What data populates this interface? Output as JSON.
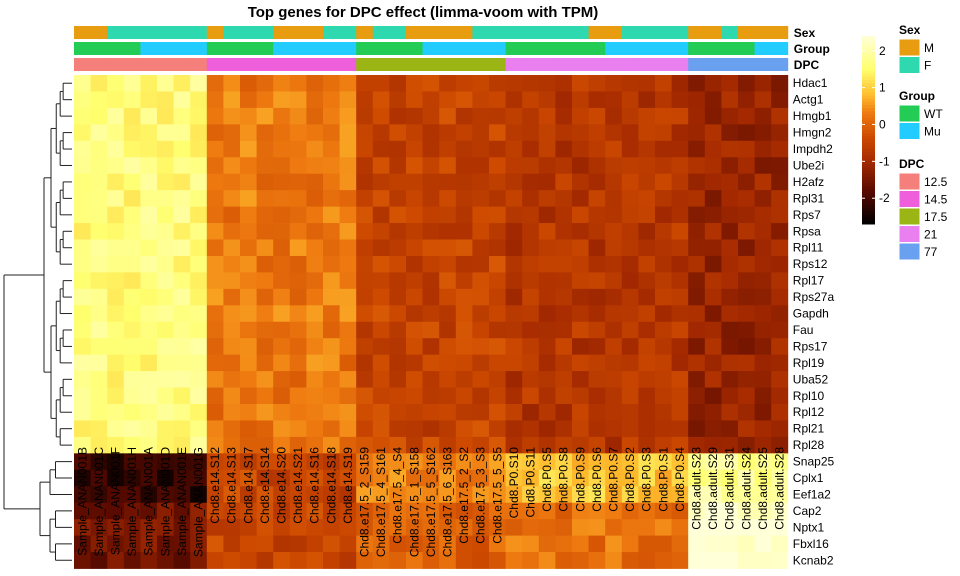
{
  "chart_data": {
    "type": "heatmap",
    "title": "Top genes for DPC effect (limma-voom with TPM)",
    "rows": [
      "Hdac1",
      "Actg1",
      "Hmgb1",
      "Hmgn2",
      "Impdh2",
      "Ube2i",
      "H2afz",
      "Rpl31",
      "Rps7",
      "Rpsa",
      "Rpl11",
      "Rps12",
      "Rpl17",
      "Rps27a",
      "Gapdh",
      "Fau",
      "Rps17",
      "Rpl19",
      "Uba52",
      "Rpl10",
      "Rpl12",
      "Rpl21",
      "Rpl28",
      "Snap25",
      "Cplx1",
      "Eef1a2",
      "Cap2",
      "Nptx1",
      "Fbxl16",
      "Kcnab2"
    ],
    "columns": [
      "Sample_ANAN001B",
      "Sample_ANAN001C",
      "Sample_ANAN001F",
      "Sample_ANAN001H",
      "Sample_ANAN001A",
      "Sample_ANAN001D",
      "Sample_ANAN001E",
      "Sample_ANAN001G",
      "Chd8.e14.S12",
      "Chd8.e14.S13",
      "Chd8.e14.S17",
      "Chd8.e14.S14",
      "Chd8.e14.S20",
      "Chd8.e14.S21",
      "Chd8.e14.S16",
      "Chd8.e14.S18",
      "Chd8.e14.S19",
      "Chd8.e17.5_2_S159",
      "Chd8.e17.5_4_S161",
      "Chd8.e17.5_4_S4",
      "Chd8.e17.5_1_S158",
      "Chd8.e17.5_5_S162",
      "Chd8.e17.5_6_S163",
      "Chd8.e17.5_2_S2",
      "Chd8.e17.5_3_S3",
      "Chd8.e17.5_5_S5",
      "Chd8.P0.S10",
      "Chd8.P0.S11",
      "Chd8.P0.S5",
      "Chd8.P0.S8",
      "Chd8.P0.S9",
      "Chd8.P0.S6",
      "Chd8.P0.S7",
      "Chd8.P0.S2",
      "Chd8.P0.S3",
      "Chd8.P0.S1",
      "Chd8.P0.S4",
      "Chd8.adult.S23",
      "Chd8.adult.S29",
      "Chd8.adult.S31",
      "Chd8.adult.S24",
      "Chd8.adult.S25",
      "Chd8.adult.S28"
    ],
    "color_scale": {
      "colors": [
        "#000000",
        "#5a0a00",
        "#a52a00",
        "#cd4a00",
        "#ee7a10",
        "#ffbd2e",
        "#ffff6e",
        "#ffffd8"
      ],
      "stops": [
        -2.7,
        -1.8,
        -1.0,
        -0.35,
        0.3,
        0.8,
        1.5,
        2.4
      ],
      "ticks": [
        2,
        1,
        0,
        -1,
        -2
      ],
      "range": [
        -2.7,
        2.4
      ]
    },
    "annotations": [
      {
        "name": "Sex",
        "values": [
          "M",
          "M",
          "F",
          "F",
          "F",
          "F",
          "F",
          "F",
          "M",
          "F",
          "F",
          "F",
          "M",
          "M",
          "M",
          "F",
          "F",
          "M",
          "F",
          "F",
          "M",
          "M",
          "M",
          "M",
          "F",
          "F",
          "F",
          "F",
          "F",
          "F",
          "F",
          "M",
          "M",
          "F",
          "F",
          "F",
          "F",
          "M",
          "M",
          "F",
          "M",
          "M",
          "M"
        ],
        "legend": [
          {
            "label": "M",
            "color": "#e89c10"
          },
          {
            "label": "F",
            "color": "#2ed9b0"
          }
        ]
      },
      {
        "name": "Group",
        "values": [
          "WT",
          "WT",
          "WT",
          "WT",
          "Mu",
          "Mu",
          "Mu",
          "Mu",
          "WT",
          "WT",
          "WT",
          "WT",
          "Mu",
          "Mu",
          "Mu",
          "Mu",
          "Mu",
          "WT",
          "WT",
          "WT",
          "WT",
          "Mu",
          "Mu",
          "Mu",
          "Mu",
          "Mu",
          "WT",
          "WT",
          "WT",
          "WT",
          "WT",
          "WT",
          "Mu",
          "Mu",
          "Mu",
          "Mu",
          "Mu",
          "WT",
          "WT",
          "WT",
          "WT",
          "Mu",
          "Mu"
        ],
        "legend": [
          {
            "label": "WT",
            "color": "#22cc55"
          },
          {
            "label": "Mu",
            "color": "#22ccff"
          }
        ]
      },
      {
        "name": "DPC",
        "values": [
          "12.5",
          "12.5",
          "12.5",
          "12.5",
          "12.5",
          "12.5",
          "12.5",
          "12.5",
          "14.5",
          "14.5",
          "14.5",
          "14.5",
          "14.5",
          "14.5",
          "14.5",
          "14.5",
          "14.5",
          "17.5",
          "17.5",
          "17.5",
          "17.5",
          "17.5",
          "17.5",
          "17.5",
          "17.5",
          "17.5",
          "21",
          "21",
          "21",
          "21",
          "21",
          "21",
          "21",
          "21",
          "21",
          "21",
          "21",
          "77",
          "77",
          "77",
          "77",
          "77",
          "77"
        ],
        "legend": [
          {
            "label": "12.5",
            "color": "#f57f7a"
          },
          {
            "label": "14.5",
            "color": "#ef5fdc"
          },
          {
            "label": "17.5",
            "color": "#9bb514"
          },
          {
            "label": "21",
            "color": "#ea7ff0"
          },
          {
            "label": "77",
            "color": "#6aa0f0"
          }
        ]
      }
    ],
    "gene_profiles": {
      "high": {
        "12.5": 1.6,
        "14.5": 0.25,
        "17.5": -0.5,
        "21": -0.75,
        "77": -1.15
      },
      "snap": {
        "12.5": -2.2,
        "14.5": -0.45,
        "17.5": 0.35,
        "21": 0.9,
        "77": 1.8
      },
      "cap": {
        "12.5": -1.5,
        "14.5": -0.45,
        "17.5": -0.05,
        "21": 0.15,
        "77": 2.3
      }
    },
    "row_profiles": [
      "high",
      "high",
      "high",
      "high",
      "high",
      "high",
      "high",
      "high",
      "high",
      "high",
      "high",
      "high",
      "high",
      "high",
      "high",
      "high",
      "high",
      "high",
      "high",
      "high",
      "high",
      "high",
      "high",
      "snap",
      "snap",
      "snap",
      "cap",
      "cap",
      "cap",
      "cap"
    ],
    "dendrogram": "hierarchical clustering of rows"
  }
}
